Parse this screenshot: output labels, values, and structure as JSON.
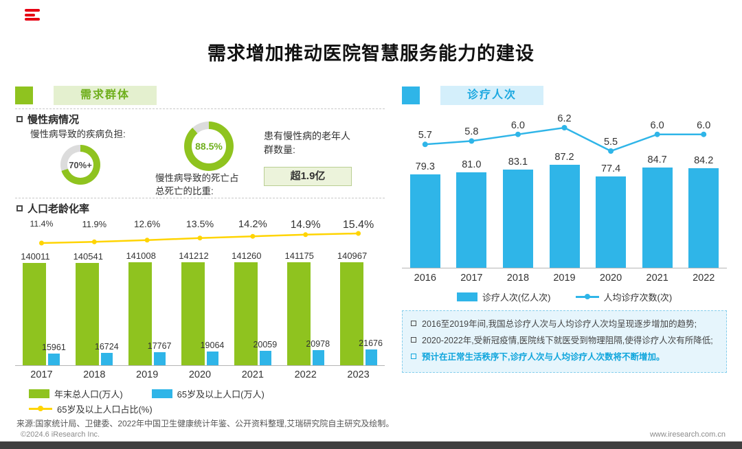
{
  "colors": {
    "green": "#8FC31F",
    "blue": "#2FB5E8",
    "yellow": "#FFD400",
    "note_blue": "#0FA5DC",
    "red": "#E60012",
    "donut_rest": "#dcdcdc"
  },
  "page": {
    "title": "需求增加推动医院智慧服务能力的建设",
    "source": "来源:国家统计局、卫健委、2022年中国卫生健康统计年鉴、公开资料整理,艾瑞研究院自主研究及绘制。",
    "footer_left": "©2024.6 iResearch Inc.",
    "footer_right": "www.iresearch.com.cn"
  },
  "left_panel": {
    "badge_label": "需求群体",
    "chronic": {
      "heading": "慢性病情况",
      "burden_label": "慢性病导致的疾病负担:",
      "burden_pct": 70,
      "burden_value": "70%+",
      "death_pct": 88.5,
      "death_value": "88.5%",
      "death_label": "慢性病导致的死亡占总死亡的比重:",
      "elderly_label": "患有慢性病的老年人群数量:",
      "elderly_value": "超1.9亿"
    },
    "aging_heading": "人口老龄化率",
    "legend": [
      {
        "label": "年末总人口(万人)"
      },
      {
        "label": "65岁及以上人口(万人)"
      },
      {
        "label": "65岁及以上人口占比(%)"
      }
    ]
  },
  "right_panel": {
    "badge_label": "诊疗人次",
    "legend": [
      {
        "label": "诊疗人次(亿人次)"
      },
      {
        "label": "人均诊疗次数(次)"
      }
    ],
    "notes": [
      {
        "text": "2016至2019年间,我国总诊疗人次与人均诊疗人次均呈现逐步增加的趋势;"
      },
      {
        "text": "2020-2022年,受新冠疫情,医院线下就医受到物理阻隔,使得诊疗人次有所降低;"
      },
      {
        "text": "预计在正常生活秩序下,诊疗人次与人均诊疗人次数将不断增加。"
      }
    ]
  },
  "chart_data": [
    {
      "type": "bar",
      "title": "人口老龄化率",
      "categories": [
        "2017",
        "2018",
        "2019",
        "2020",
        "2021",
        "2022",
        "2023"
      ],
      "series": [
        {
          "name": "年末总人口(万人)",
          "type": "bar",
          "values": [
            140011,
            140541,
            141008,
            141212,
            141260,
            141175,
            140967
          ]
        },
        {
          "name": "65岁及以上人口(万人)",
          "type": "bar",
          "values": [
            15961,
            16724,
            17767,
            19064,
            20059,
            20978,
            21676
          ]
        },
        {
          "name": "65岁及以上人口占比(%)",
          "type": "line",
          "values": [
            11.4,
            11.9,
            12.6,
            13.5,
            14.2,
            14.9,
            15.4
          ]
        }
      ],
      "legend_position": "bottom",
      "grid": false
    },
    {
      "type": "bar",
      "title": "诊疗人次",
      "categories": [
        "2016",
        "2017",
        "2018",
        "2019",
        "2020",
        "2021",
        "2022"
      ],
      "series": [
        {
          "name": "诊疗人次(亿人次)",
          "type": "bar",
          "values": [
            79.3,
            81.0,
            83.1,
            87.2,
            77.4,
            84.7,
            84.2
          ]
        },
        {
          "name": "人均诊疗次数(次)",
          "type": "line",
          "values": [
            5.7,
            5.8,
            6.0,
            6.2,
            5.5,
            6.0,
            6.0
          ]
        }
      ],
      "legend_position": "bottom",
      "grid": false
    }
  ]
}
